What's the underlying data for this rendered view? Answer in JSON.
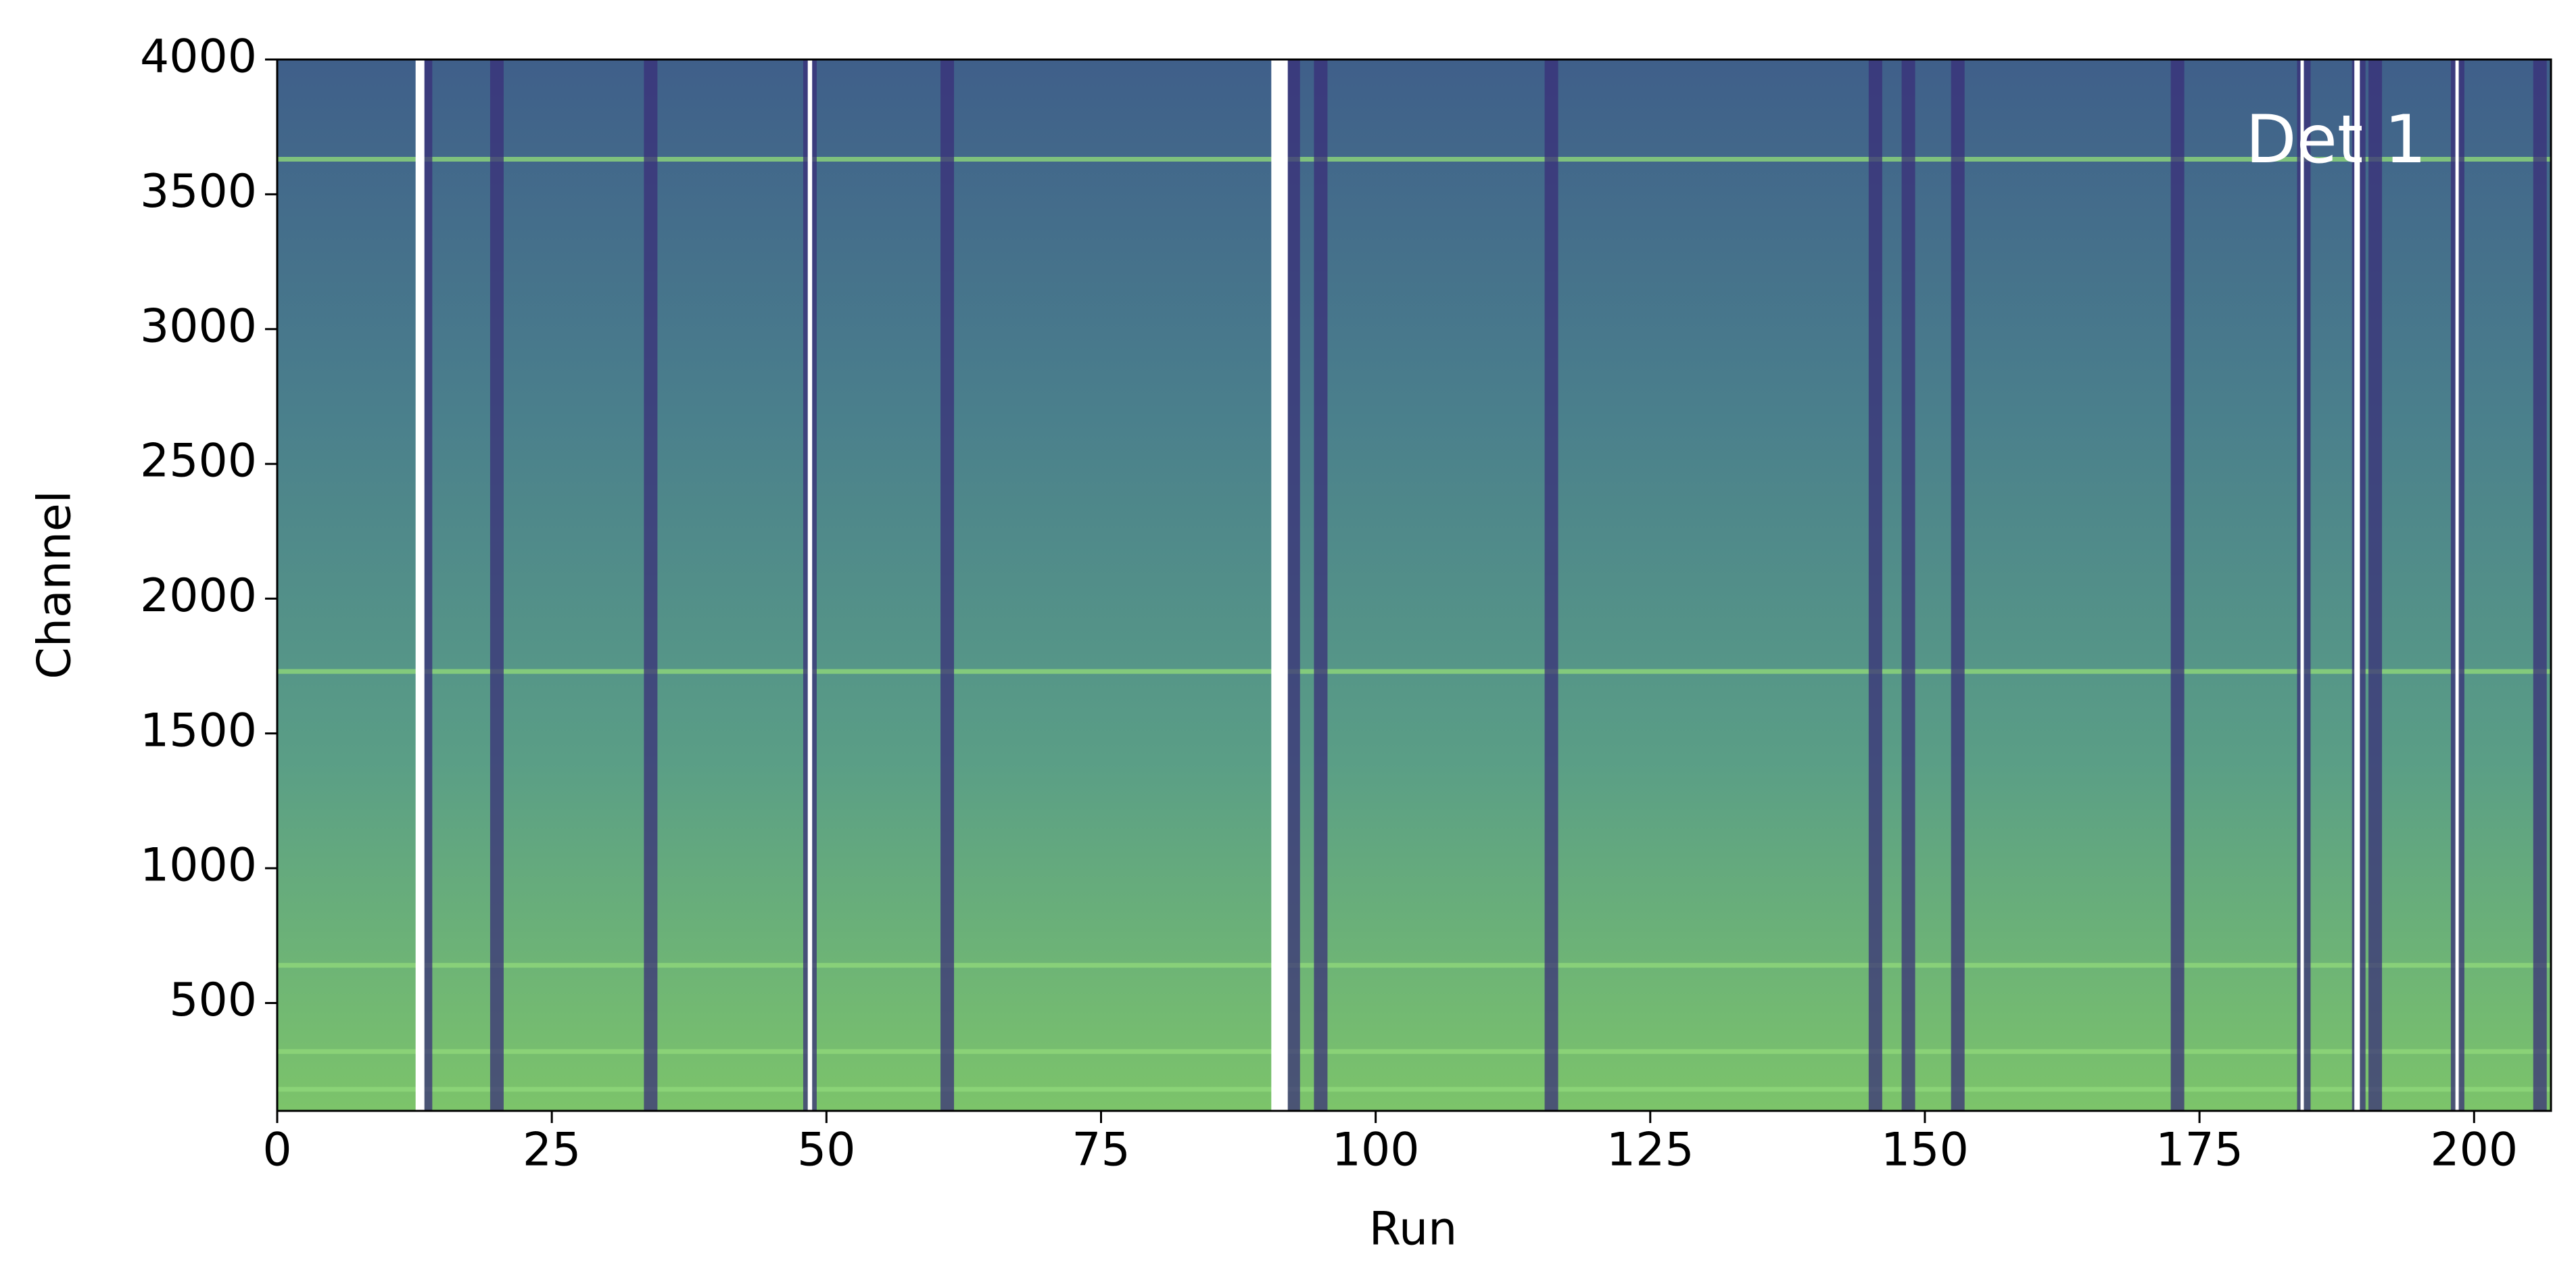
{
  "chart_data": {
    "type": "heatmap",
    "xlabel": "Run",
    "ylabel": "Channel",
    "annotation": "Det 1",
    "xlim": [
      0,
      207
    ],
    "ylim": [
      100,
      4000
    ],
    "xticks": [
      0,
      25,
      50,
      75,
      100,
      125,
      150,
      175,
      200
    ],
    "yticks": [
      500,
      1000,
      1500,
      2000,
      2500,
      3000,
      3500,
      4000
    ],
    "colormap": [
      "#7cc46a",
      "#5a9e86",
      "#4a7f8c",
      "#3f5f8a"
    ],
    "dark_color": "#3a2f78",
    "missing_color": "#ffffff",
    "bright_color": "#8fd87a",
    "dark_runs": [
      13.5,
      20,
      34,
      48.5,
      61,
      92.5,
      95,
      116,
      145.5,
      148.5,
      153,
      173,
      184.5,
      189.5,
      191,
      198.5,
      206
    ],
    "missing_runs": [
      [
        12.6,
        13.4
      ],
      [
        48.3,
        48.7
      ],
      [
        90.5,
        92
      ],
      [
        184.2,
        184.5
      ],
      [
        189.1,
        189.6
      ],
      [
        198.3,
        198.6
      ]
    ],
    "bright_channels": [
      3630,
      1730,
      640,
      320,
      180
    ]
  }
}
